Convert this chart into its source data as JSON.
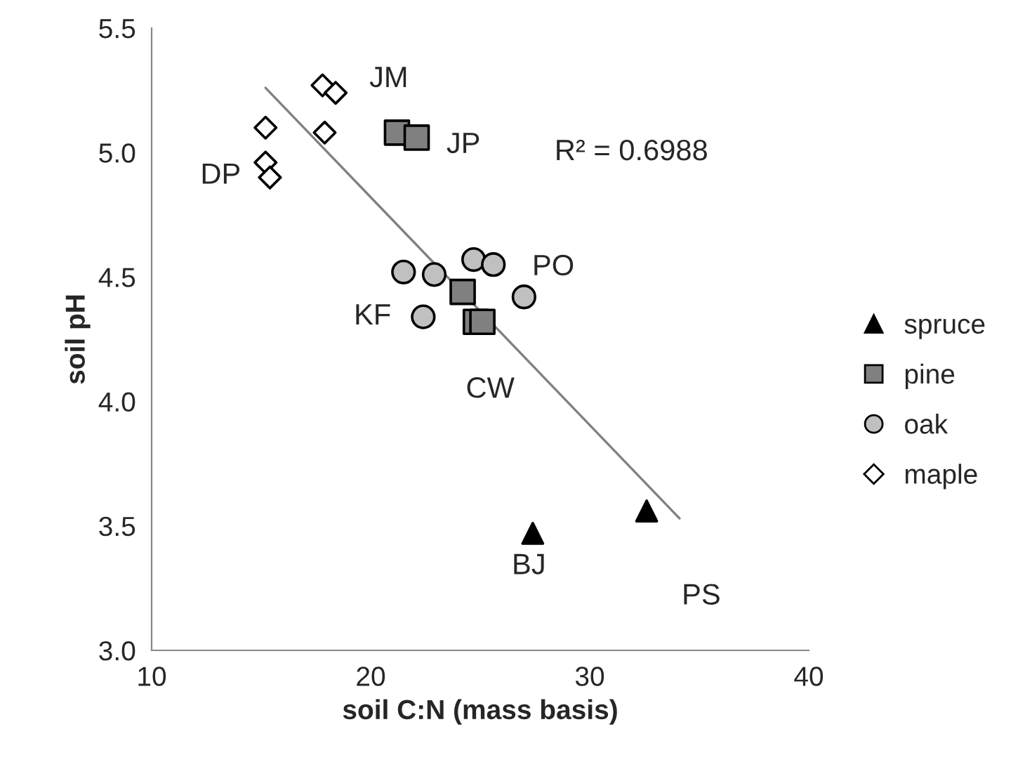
{
  "chart_data": {
    "type": "scatter",
    "xlabel": "soil C:N (mass basis)",
    "ylabel": "soil pH",
    "xlim": [
      10,
      40
    ],
    "xticks": [
      10,
      20,
      30,
      40
    ],
    "ylim": [
      3.0,
      5.5
    ],
    "yticks": [
      {
        "value": 3.0,
        "label": "3.0"
      },
      {
        "value": 3.5,
        "label": "3.5"
      },
      {
        "value": 4.0,
        "label": "4.0"
      },
      {
        "value": 4.5,
        "label": "4.5"
      },
      {
        "value": 5.0,
        "label": "5.0"
      },
      {
        "value": 5.5,
        "label": "5.5"
      }
    ],
    "grid": false,
    "legend": "right",
    "series": [
      {
        "name": "spruce",
        "color": "#000000",
        "marker": "triangle",
        "x": [
          27.4,
          32.6
        ],
        "values": [
          3.47,
          3.56
        ]
      },
      {
        "name": "pine",
        "color": "#808080",
        "marker": "square",
        "x": [
          21.2,
          22.1,
          24.2,
          24.8,
          25.1
        ],
        "values": [
          5.08,
          5.06,
          4.44,
          4.32,
          4.32
        ]
      },
      {
        "name": "oak",
        "color": "#c0c0c0",
        "marker": "circle",
        "x": [
          21.5,
          22.9,
          24.7,
          25.6,
          27.0,
          22.4
        ],
        "values": [
          4.52,
          4.51,
          4.57,
          4.55,
          4.42,
          4.34
        ]
      },
      {
        "name": "maple",
        "color": "#ffffff",
        "marker": "diamond",
        "x": [
          17.8,
          18.4,
          15.2,
          17.9,
          15.2,
          15.4
        ],
        "values": [
          5.27,
          5.24,
          5.1,
          5.08,
          4.96,
          4.9
        ]
      },
      {
        "type": "line",
        "color": "#808080",
        "x": [
          15.2,
          34.1
        ],
        "values": [
          5.26,
          3.53
        ]
      }
    ],
    "annotations": [
      {
        "text": "JM",
        "x": 17.8,
        "y": 5.27
      },
      {
        "text": "JP",
        "x": 22.1,
        "y": 5.06
      },
      {
        "text": "DP",
        "x": 15.2,
        "y": 4.96
      },
      {
        "text": "PO",
        "x": 27.0,
        "y": 4.42
      },
      {
        "text": "KF",
        "x": 22.4,
        "y": 4.34
      },
      {
        "text": "CW",
        "x": 25.1,
        "y": 4.32
      },
      {
        "text": "BJ",
        "x": 27.4,
        "y": 3.47
      },
      {
        "text": "PS",
        "x": 32.6,
        "y": 3.56
      },
      "R² = 0.6988"
    ]
  }
}
